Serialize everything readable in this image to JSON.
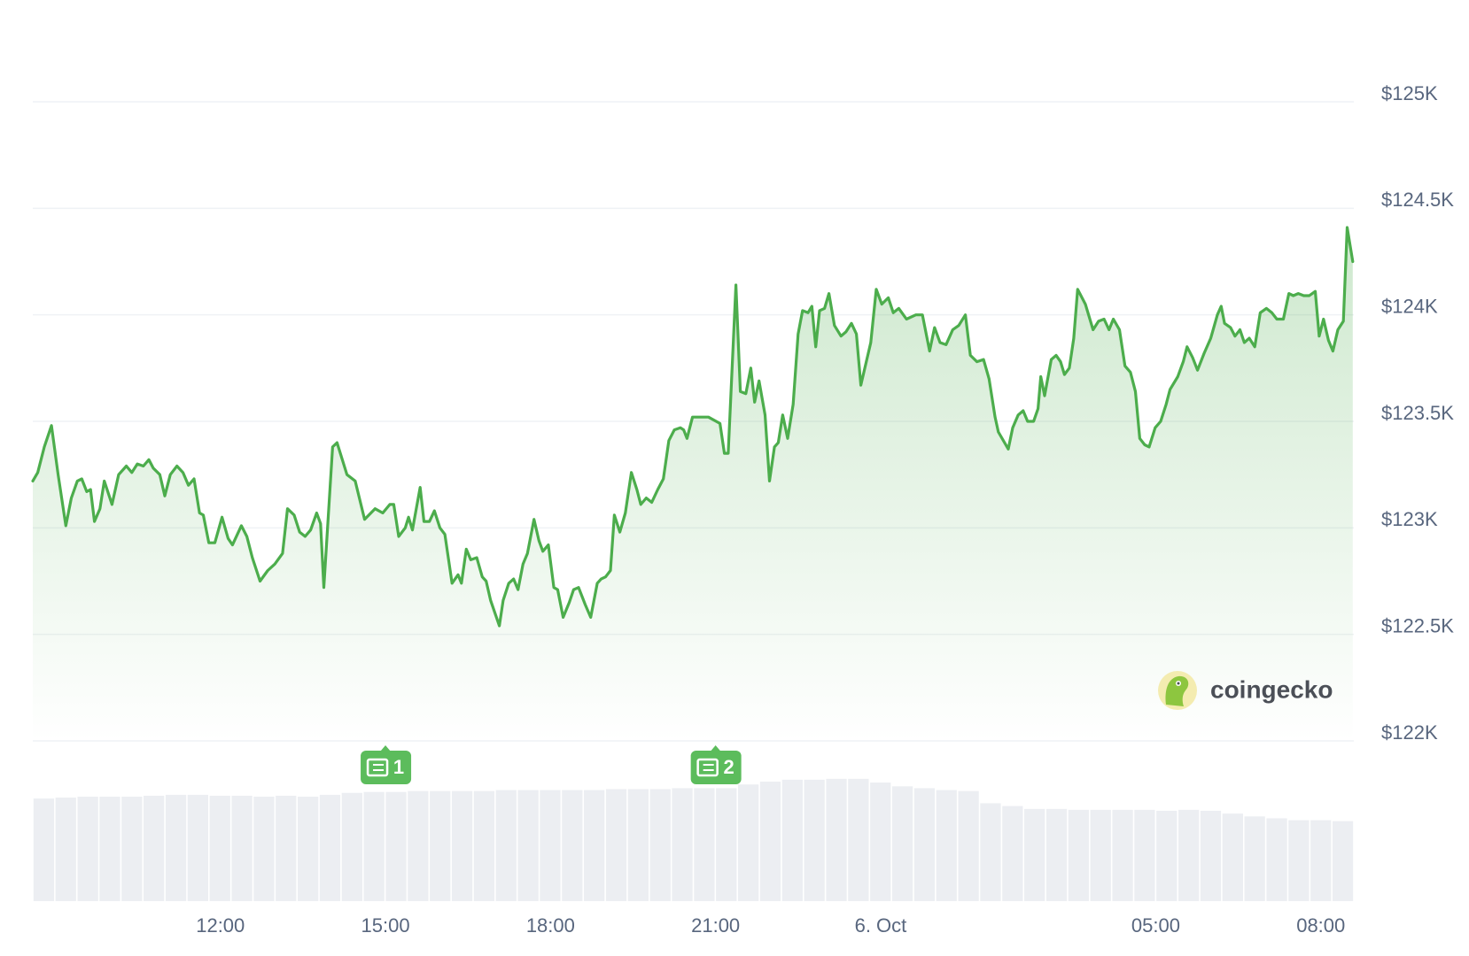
{
  "chart_data": {
    "type": "line",
    "watermark": "coingecko",
    "x": [
      8.59,
      8.68,
      8.8,
      8.93,
      9.05,
      9.19,
      9.29,
      9.4,
      9.48,
      9.57,
      9.64,
      9.71,
      9.81,
      9.89,
      10.03,
      10.15,
      10.29,
      10.39,
      10.49,
      10.6,
      10.7,
      10.78,
      10.9,
      10.99,
      11.09,
      11.21,
      11.32,
      11.42,
      11.52,
      11.62,
      11.69,
      11.79,
      11.9,
      12.03,
      12.14,
      12.22,
      12.38,
      12.48,
      12.58,
      12.72,
      12.86,
      12.99,
      13.13,
      13.22,
      13.34,
      13.44,
      13.54,
      13.64,
      13.75,
      13.82,
      13.88,
      14.04,
      14.12,
      14.3,
      14.45,
      14.62,
      14.81,
      14.95,
      15.08,
      15.15,
      15.24,
      15.36,
      15.42,
      15.49,
      15.63,
      15.7,
      15.8,
      15.89,
      15.99,
      16.08,
      16.21,
      16.32,
      16.38,
      16.47,
      16.55,
      16.66,
      16.76,
      16.83,
      16.91,
      17.07,
      17.14,
      17.24,
      17.33,
      17.41,
      17.5,
      17.58,
      17.7,
      17.79,
      17.86,
      17.96,
      18.06,
      18.13,
      18.23,
      18.34,
      18.42,
      18.51,
      18.63,
      18.73,
      18.85,
      18.92,
      19.0,
      19.09,
      19.16,
      19.26,
      19.36,
      19.47,
      19.57,
      19.64,
      19.74,
      19.84,
      19.95,
      20.05,
      20.15,
      20.25,
      20.36,
      20.42,
      20.48,
      20.58,
      20.73,
      20.87,
      21.08,
      21.16,
      21.23,
      21.37,
      21.45,
      21.55,
      21.64,
      21.71,
      21.79,
      21.9,
      21.98,
      22.07,
      22.14,
      22.22,
      22.31,
      22.41,
      22.5,
      22.58,
      22.68,
      22.75,
      22.82,
      22.89,
      22.98,
      23.06,
      23.16,
      23.28,
      23.37,
      23.47,
      23.56,
      23.64,
      23.82,
      23.92,
      24.02,
      24.14,
      24.23,
      24.33,
      24.47,
      24.64,
      24.76,
      24.89,
      24.98,
      25.08,
      25.19,
      25.31,
      25.42,
      25.54,
      25.63,
      25.75,
      25.87,
      25.97,
      26.08,
      26.14,
      26.32,
      26.4,
      26.5,
      26.59,
      26.67,
      26.78,
      26.86,
      26.91,
      26.98,
      27.1,
      27.19,
      27.27,
      27.34,
      27.43,
      27.51,
      27.58,
      27.72,
      27.86,
      27.96,
      28.06,
      28.15,
      28.23,
      28.34,
      28.44,
      28.54,
      28.63,
      28.71,
      28.8,
      28.88,
      28.99,
      29.09,
      29.19,
      29.26,
      29.4,
      29.5,
      29.57,
      29.67,
      29.76,
      29.88,
      30.0,
      30.12,
      30.19,
      30.25,
      30.36,
      30.44,
      30.53,
      30.61,
      30.7,
      30.8,
      30.9,
      31.01,
      31.11,
      31.2,
      31.32,
      31.42,
      31.5,
      31.59,
      31.69,
      31.79,
      31.9,
      31.97,
      32.05,
      32.14,
      32.22,
      32.31,
      32.41,
      32.48,
      32.58
    ],
    "series": [
      {
        "color": "#4cad4c",
        "values": [
          123.22,
          123.26,
          123.38,
          123.48,
          123.25,
          123.01,
          123.14,
          123.22,
          123.23,
          123.17,
          123.18,
          123.03,
          123.09,
          123.22,
          123.11,
          123.25,
          123.29,
          123.26,
          123.3,
          123.29,
          123.32,
          123.28,
          123.25,
          123.15,
          123.25,
          123.29,
          123.26,
          123.2,
          123.23,
          123.07,
          123.06,
          122.93,
          122.93,
          123.05,
          122.95,
          122.92,
          123.01,
          122.96,
          122.86,
          122.75,
          122.8,
          122.83,
          122.88,
          123.09,
          123.06,
          122.98,
          122.96,
          122.99,
          123.07,
          123.02,
          122.72,
          123.38,
          123.4,
          123.25,
          123.22,
          123.04,
          123.09,
          123.07,
          123.11,
          123.11,
          122.96,
          123.0,
          123.05,
          122.99,
          123.19,
          123.03,
          123.03,
          123.08,
          123.0,
          122.97,
          122.74,
          122.78,
          122.74,
          122.9,
          122.85,
          122.86,
          122.77,
          122.75,
          122.66,
          122.54,
          122.66,
          122.74,
          122.76,
          122.71,
          122.83,
          122.88,
          123.04,
          122.94,
          122.89,
          122.92,
          122.72,
          122.71,
          122.58,
          122.65,
          122.71,
          122.72,
          122.64,
          122.58,
          122.74,
          122.76,
          122.77,
          122.8,
          123.06,
          122.98,
          123.07,
          123.26,
          123.18,
          123.11,
          123.14,
          123.12,
          123.18,
          123.23,
          123.41,
          123.46,
          123.47,
          123.46,
          123.42,
          123.52,
          123.52,
          123.52,
          123.49,
          123.35,
          123.35,
          124.14,
          123.64,
          123.63,
          123.75,
          123.59,
          123.69,
          123.53,
          123.22,
          123.38,
          123.4,
          123.53,
          123.42,
          123.58,
          123.91,
          124.02,
          124.01,
          124.04,
          123.85,
          124.02,
          124.03,
          124.1,
          123.95,
          123.9,
          123.92,
          123.96,
          123.91,
          123.67,
          123.87,
          124.12,
          124.05,
          124.08,
          124.01,
          124.03,
          123.98,
          124.0,
          124.0,
          123.83,
          123.94,
          123.87,
          123.86,
          123.93,
          123.95,
          124.0,
          123.81,
          123.78,
          123.79,
          123.7,
          123.52,
          123.45,
          123.37,
          123.47,
          123.53,
          123.55,
          123.5,
          123.5,
          123.56,
          123.71,
          123.62,
          123.79,
          123.81,
          123.78,
          123.72,
          123.75,
          123.89,
          124.12,
          124.05,
          123.93,
          123.97,
          123.98,
          123.93,
          123.98,
          123.93,
          123.76,
          123.73,
          123.64,
          123.42,
          123.39,
          123.38,
          123.47,
          123.5,
          123.58,
          123.65,
          123.71,
          123.78,
          123.85,
          123.8,
          123.74,
          123.82,
          123.89,
          124.0,
          124.04,
          123.96,
          123.94,
          123.9,
          123.93,
          123.87,
          123.89,
          123.85,
          124.01,
          124.03,
          124.01,
          123.98,
          123.98,
          124.1,
          124.09,
          124.1,
          124.09,
          124.09,
          124.11,
          123.9,
          123.98,
          123.88,
          123.83,
          123.93,
          123.97,
          124.41,
          124.25
        ]
      }
    ],
    "xlim": [
      8.59,
      32.6
    ],
    "xticks": [
      {
        "value": 12,
        "label": "12:00"
      },
      {
        "value": 15,
        "label": "15:00"
      },
      {
        "value": 18,
        "label": "18:00"
      },
      {
        "value": 21,
        "label": "21:00"
      },
      {
        "value": 24,
        "label": "6. Oct"
      },
      {
        "value": 29,
        "label": "05:00"
      },
      {
        "value": 32,
        "label": "08:00"
      }
    ],
    "ylim": [
      122,
      125
    ],
    "yticks": [
      {
        "value": 122,
        "label": "$122K"
      },
      {
        "value": 122.5,
        "label": "$122.5K"
      },
      {
        "value": 123,
        "label": "$123K"
      },
      {
        "value": 123.5,
        "label": "$123.5K"
      },
      {
        "value": 124,
        "label": "$124K"
      },
      {
        "value": 124.5,
        "label": "$124.5K"
      },
      {
        "value": 125,
        "label": "$125K"
      }
    ],
    "grid": true,
    "volume": {
      "color": "#eceef2",
      "values": [
        109,
        110,
        111,
        111,
        111,
        112,
        113,
        113,
        112,
        112,
        111,
        112,
        111,
        113,
        115,
        116,
        116,
        117,
        117,
        117,
        117,
        118,
        118,
        118,
        118,
        118,
        119,
        119,
        119,
        120,
        120,
        120,
        124,
        127,
        129,
        129,
        130,
        130,
        126,
        122,
        120,
        118,
        117,
        104,
        101,
        98,
        98,
        97,
        97,
        97,
        97,
        96,
        97,
        96,
        93,
        90,
        88,
        86,
        86,
        85
      ]
    },
    "annotations": [
      {
        "x": 15,
        "label": "1"
      },
      {
        "x": 21,
        "label": "2"
      }
    ]
  }
}
